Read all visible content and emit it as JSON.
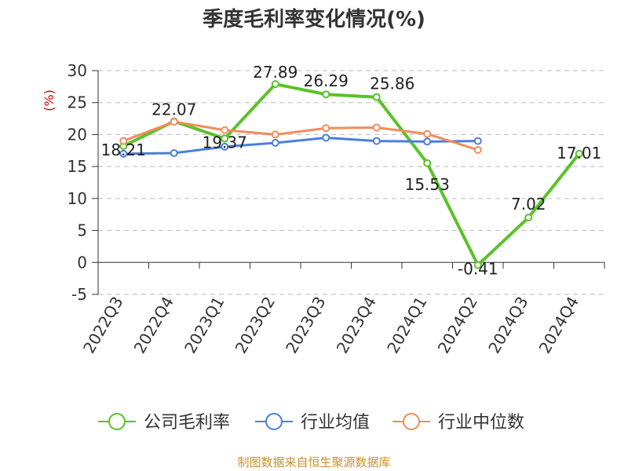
{
  "chart_data": {
    "type": "line",
    "title": "季度毛利率变化情况(%)",
    "ylabel": "(%)",
    "xlabel": "",
    "ylim": [
      -5,
      30
    ],
    "yticks": [
      -5,
      0,
      5,
      10,
      15,
      20,
      25,
      30
    ],
    "categories": [
      "2022Q3",
      "2022Q4",
      "2023Q1",
      "2023Q2",
      "2023Q3",
      "2023Q4",
      "2024Q1",
      "2024Q2",
      "2024Q3",
      "2024Q4"
    ],
    "grid": true,
    "legend_position": "bottom",
    "series": [
      {
        "name": "公司毛利率",
        "color": "#5ac229",
        "values": [
          18.21,
          22.07,
          19.37,
          27.89,
          26.29,
          25.86,
          15.53,
          -0.41,
          7.02,
          17.01
        ],
        "labels": [
          "18.21",
          "22.07",
          "19.37",
          "27.89",
          "26.29",
          "25.86",
          "15.53",
          "-0.41",
          "7.02",
          "17.01"
        ]
      },
      {
        "name": "行业均值",
        "color": "#4a7fdc",
        "values": [
          17.0,
          17.1,
          18.1,
          18.7,
          19.5,
          19.0,
          18.9,
          19.0,
          null,
          null
        ]
      },
      {
        "name": "行业中位数",
        "color": "#f28c5a",
        "values": [
          19.0,
          22.0,
          20.7,
          20.0,
          21.0,
          21.1,
          20.1,
          17.6,
          null,
          null
        ]
      }
    ]
  },
  "footer": {
    "source": "制图数据来自恒生聚源数据库"
  }
}
